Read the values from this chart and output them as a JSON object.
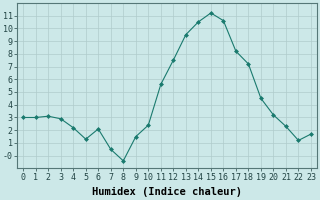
{
  "x": [
    0,
    1,
    2,
    3,
    4,
    5,
    6,
    7,
    8,
    9,
    10,
    11,
    12,
    13,
    14,
    15,
    16,
    17,
    18,
    19,
    20,
    21,
    22,
    23
  ],
  "y": [
    3.0,
    3.0,
    3.1,
    2.9,
    2.2,
    1.3,
    2.1,
    0.5,
    -0.4,
    1.5,
    2.4,
    5.6,
    7.5,
    9.5,
    10.5,
    11.2,
    10.6,
    8.2,
    7.2,
    4.5,
    3.2,
    2.3,
    1.2,
    1.7
  ],
  "line_color": "#1a7a6e",
  "marker": "D",
  "marker_size": 2.0,
  "bg_color": "#cce8e8",
  "grid_color": "#b0cccc",
  "xlabel": "Humidex (Indice chaleur)",
  "ylim": [
    -1,
    12
  ],
  "xlim": [
    -0.5,
    23.5
  ],
  "yticks": [
    0,
    1,
    2,
    3,
    4,
    5,
    6,
    7,
    8,
    9,
    10,
    11
  ],
  "ytick_labels": [
    "-0",
    "1",
    "2",
    "3",
    "4",
    "5",
    "6",
    "7",
    "8",
    "9",
    "10",
    "11"
  ],
  "xticks": [
    0,
    1,
    2,
    3,
    4,
    5,
    6,
    7,
    8,
    9,
    10,
    11,
    12,
    13,
    14,
    15,
    16,
    17,
    18,
    19,
    20,
    21,
    22,
    23
  ],
  "tick_fontsize": 6.0,
  "xlabel_fontsize": 7.5
}
